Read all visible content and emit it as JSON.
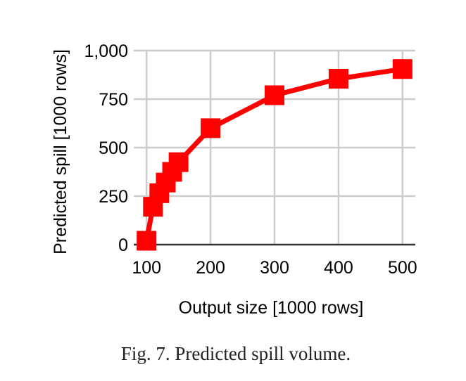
{
  "chart_data": {
    "type": "line",
    "title": "",
    "xlabel": "Output size [1000 rows]",
    "ylabel": "Predicted spill [1000 rows]",
    "xlim": [
      80,
      520
    ],
    "ylim": [
      0,
      1000
    ],
    "xticks": [
      100,
      200,
      300,
      400,
      500
    ],
    "xtick_labels": [
      "100",
      "200",
      "300",
      "400",
      "500"
    ],
    "yticks": [
      0,
      250,
      500,
      750,
      1000
    ],
    "ytick_labels": [
      "0",
      "250",
      "500",
      "750",
      "1,000"
    ],
    "grid": true,
    "series": [
      {
        "x": [
          100,
          110,
          120,
          130,
          140,
          150,
          200,
          300,
          400,
          500
        ],
        "y": [
          20,
          195,
          265,
          320,
          375,
          425,
          600,
          770,
          855,
          905
        ],
        "color": "#ff0000",
        "marker": "square"
      }
    ]
  },
  "caption": "Fig. 7.  Predicted spill volume."
}
